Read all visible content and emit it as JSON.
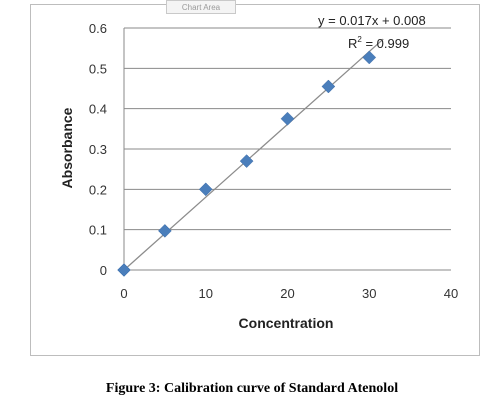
{
  "chart_area_label": "Chart Area",
  "caption": "Figure 3: Calibration curve of Standard Atenolol",
  "chart_data": {
    "type": "scatter",
    "xlabel": "Concentration",
    "ylabel": "Absorbance",
    "xlim": [
      0,
      40
    ],
    "ylim": [
      0,
      0.6
    ],
    "x_ticks": [
      0,
      10,
      20,
      30,
      40
    ],
    "y_ticks": [
      0,
      0.1,
      0.2,
      0.3,
      0.4,
      0.5,
      0.6
    ],
    "x_tick_labels": [
      "0",
      "10",
      "20",
      "30",
      "40"
    ],
    "y_tick_labels": [
      "0",
      "0.1",
      "0.2",
      "0.3",
      "0.4",
      "0.5",
      "0.6"
    ],
    "grid": "horizontal",
    "legend": "none",
    "series": [
      {
        "x": [
          0,
          5,
          10,
          15,
          20,
          25,
          30
        ],
        "y": [
          0,
          0.097,
          0.2,
          0.27,
          0.375,
          0.455,
          0.527
        ],
        "marker": "diamond",
        "color": "#4a7ebb"
      }
    ],
    "trendline": {
      "type": "linear",
      "slope": 0.017,
      "intercept": 0.008,
      "x_range": [
        0,
        30
      ],
      "color": "#8c8c8c"
    },
    "annotations": {
      "equation": "y = 0.017x + 0.008",
      "r2_prefix": "R",
      "r2_superscript": "2",
      "r2_value": " = 0.999"
    }
  }
}
